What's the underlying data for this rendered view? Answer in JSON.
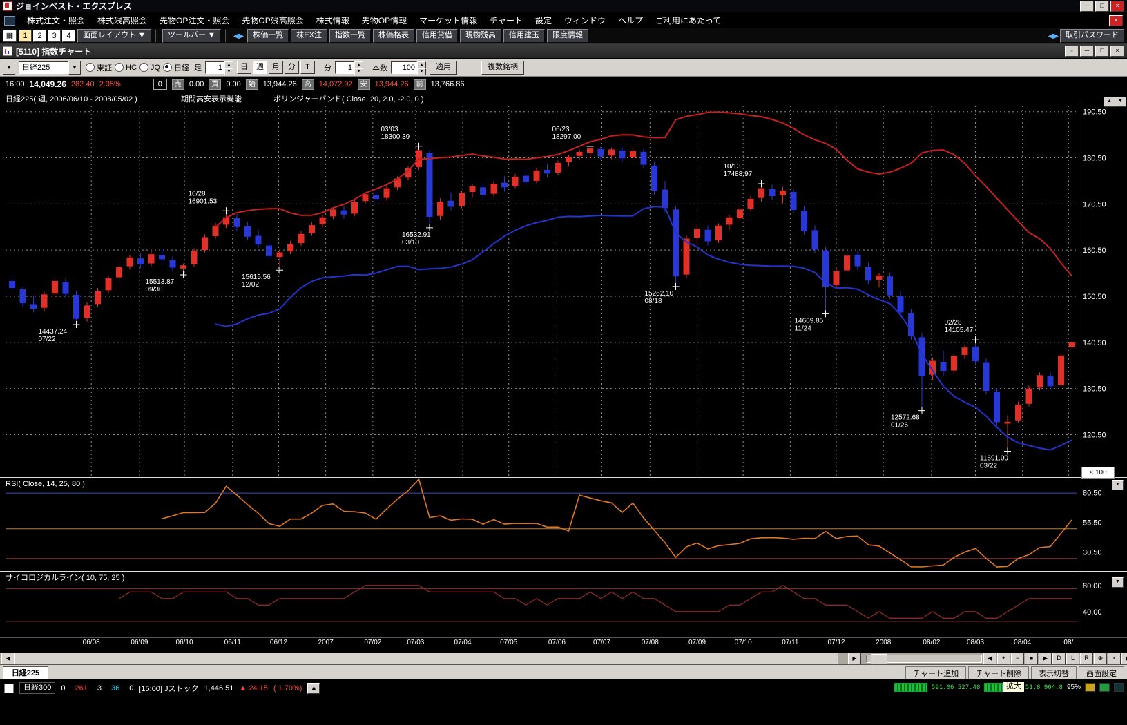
{
  "window": {
    "title": "ジョインベスト・エクスプレス"
  },
  "menu": {
    "items": [
      "株式注文・照会",
      "株式残高照会",
      "先物OP注文・照会",
      "先物OP残高照会",
      "株式情報",
      "先物OP情報",
      "マーケット情報",
      "チャート",
      "設定",
      "ウィンドウ",
      "ヘルプ",
      "ご利用にあたって"
    ]
  },
  "toolbar": {
    "layout_numbers": [
      "1",
      "2",
      "3",
      "4"
    ],
    "layout_dropdown": "画面レイアウト",
    "toolbar_dropdown": "ツールバー",
    "buttons": [
      "株価一覧",
      "株EX注",
      "指数一覧",
      "株価格表",
      "信用貸借",
      "現物残高",
      "信用建玉",
      "限度情報"
    ],
    "password_button": "取引パスワード"
  },
  "chart_window": {
    "title": "[5110] 指数チャート"
  },
  "controls": {
    "symbol": "日経225",
    "markets": [
      {
        "label": "東証",
        "selected": false
      },
      {
        "label": "HC",
        "selected": false
      },
      {
        "label": "JQ",
        "selected": false
      },
      {
        "label": "日経",
        "selected": true
      }
    ],
    "ashi_label": "足",
    "ashi_value": "1",
    "period_buttons": [
      {
        "label": "日",
        "active": false
      },
      {
        "label": "週",
        "active": true
      },
      {
        "label": "月",
        "active": false
      },
      {
        "label": "分",
        "active": false
      },
      {
        "label": "T",
        "active": false
      }
    ],
    "min_label": "分",
    "min_value": "1",
    "bars_label": "本数",
    "bars_value": "100",
    "apply_button": "適用",
    "multi_button": "複数銘柄"
  },
  "quote": {
    "time": "16:00",
    "price": "14,049.26",
    "change": "282.40",
    "change_pct": "2.05%",
    "volume": "0",
    "fields": [
      {
        "label": "売",
        "value": "0.00",
        "color": "#ffffff"
      },
      {
        "label": "買",
        "value": "0.00",
        "color": "#ffffff"
      },
      {
        "label": "始",
        "value": "13,944.26",
        "color": "#ffffff"
      },
      {
        "label": "高",
        "value": "14,072.92",
        "color": "#ff5040"
      },
      {
        "label": "安",
        "value": "13,944.26",
        "color": "#ff5040"
      },
      {
        "label": "前",
        "value": "13,766.86",
        "color": "#ffffff"
      }
    ]
  },
  "chart_data": {
    "type": "candlestick",
    "title": "日経225( 週, 2006/06/10 - 2008/05/02 )",
    "feature_labels": [
      "期間高安表示機能",
      "ボリンジャーバンド( Close, 20, 2.0, -2.0, 0 )"
    ],
    "multiplier": "× 100",
    "y_axis": {
      "domain": [
        11160,
        19180
      ],
      "gridlines": [
        19050,
        18050,
        17050,
        16050,
        15050,
        14050,
        13050,
        12050
      ],
      "labels": [
        "190.50",
        "180.50",
        "170.50",
        "160.50",
        "150.50",
        "140.50",
        "130.50",
        "120.50"
      ]
    },
    "x_ticks": [
      {
        "i": 7.4,
        "label": "06/08"
      },
      {
        "i": 11.9,
        "label": "06/09"
      },
      {
        "i": 16.1,
        "label": "06/10"
      },
      {
        "i": 20.6,
        "label": "06/11"
      },
      {
        "i": 24.9,
        "label": "06/12"
      },
      {
        "i": 29.3,
        "label": "2007"
      },
      {
        "i": 33.7,
        "label": "07/02"
      },
      {
        "i": 37.7,
        "label": "07/03"
      },
      {
        "i": 42.1,
        "label": "07/04"
      },
      {
        "i": 46.4,
        "label": "07/05"
      },
      {
        "i": 50.9,
        "label": "07/06"
      },
      {
        "i": 55.1,
        "label": "07/07"
      },
      {
        "i": 59.6,
        "label": "07/08"
      },
      {
        "i": 64.0,
        "label": "07/09"
      },
      {
        "i": 68.3,
        "label": "07/10"
      },
      {
        "i": 72.7,
        "label": "07/11"
      },
      {
        "i": 77.0,
        "label": "07/12"
      },
      {
        "i": 81.4,
        "label": "2008"
      },
      {
        "i": 85.9,
        "label": "08/02"
      },
      {
        "i": 90.0,
        "label": "08/03"
      },
      {
        "i": 94.4,
        "label": "08/04"
      },
      {
        "i": 98.7,
        "label": "08/"
      }
    ],
    "candles": [
      [
        15380,
        15520,
        15150,
        15230
      ],
      [
        15200,
        15260,
        14830,
        14900
      ],
      [
        14880,
        15070,
        14700,
        14780
      ],
      [
        14800,
        15150,
        14720,
        15090
      ],
      [
        15110,
        15440,
        15040,
        15380
      ],
      [
        15360,
        15450,
        15010,
        15100
      ],
      [
        15080,
        15170,
        14437.24,
        14560
      ],
      [
        14580,
        14920,
        14500,
        14850
      ],
      [
        14880,
        15230,
        14820,
        15160
      ],
      [
        15180,
        15500,
        15120,
        15440
      ],
      [
        15460,
        15740,
        15390,
        15680
      ],
      [
        15700,
        15950,
        15630,
        15890
      ],
      [
        15870,
        15980,
        15660,
        15740
      ],
      [
        15760,
        16020,
        15700,
        15960
      ],
      [
        15940,
        16060,
        15770,
        15850
      ],
      [
        15830,
        15920,
        15590,
        15670
      ],
      [
        15650,
        15760,
        15513.87,
        15720
      ],
      [
        15740,
        16090,
        15690,
        16030
      ],
      [
        16050,
        16390,
        16000,
        16330
      ],
      [
        16350,
        16640,
        16290,
        16580
      ],
      [
        16600,
        16901.53,
        16530,
        16760
      ],
      [
        16740,
        16830,
        16460,
        16550
      ],
      [
        16570,
        16660,
        16260,
        16340
      ],
      [
        16360,
        16490,
        16100,
        16170
      ],
      [
        16150,
        16260,
        15840,
        15920
      ],
      [
        15900,
        16060,
        15615.56,
        16000
      ],
      [
        16020,
        16250,
        15960,
        16180
      ],
      [
        16200,
        16460,
        16140,
        16400
      ],
      [
        16420,
        16650,
        16360,
        16590
      ],
      [
        16610,
        16810,
        16550,
        16760
      ],
      [
        16780,
        16980,
        16720,
        16930
      ],
      [
        16910,
        17010,
        16730,
        16820
      ],
      [
        16840,
        17140,
        16790,
        17090
      ],
      [
        17110,
        17310,
        17040,
        17260
      ],
      [
        17240,
        17380,
        17070,
        17160
      ],
      [
        17180,
        17440,
        17120,
        17390
      ],
      [
        17410,
        17650,
        17350,
        17600
      ],
      [
        17620,
        17870,
        17560,
        17820
      ],
      [
        17850,
        18300.39,
        17790,
        18215
      ],
      [
        18150,
        18220,
        16532.91,
        16770
      ],
      [
        16790,
        17170,
        16710,
        17100
      ],
      [
        17120,
        17300,
        16910,
        16990
      ],
      [
        17010,
        17340,
        16960,
        17290
      ],
      [
        17310,
        17490,
        17190,
        17430
      ],
      [
        17410,
        17500,
        17170,
        17250
      ],
      [
        17270,
        17540,
        17210,
        17490
      ],
      [
        17510,
        17650,
        17320,
        17410
      ],
      [
        17430,
        17700,
        17390,
        17640
      ],
      [
        17660,
        17770,
        17450,
        17530
      ],
      [
        17550,
        17820,
        17500,
        17770
      ],
      [
        17790,
        17920,
        17630,
        17710
      ],
      [
        17730,
        17990,
        17680,
        17940
      ],
      [
        17960,
        18120,
        17860,
        18070
      ],
      [
        18090,
        18230,
        18000,
        18180
      ],
      [
        18160,
        18297.0,
        18030,
        18260
      ],
      [
        18240,
        18290,
        18000,
        18080
      ],
      [
        18100,
        18270,
        18020,
        18230
      ],
      [
        18210,
        18280,
        17960,
        18040
      ],
      [
        18060,
        18260,
        17990,
        18200
      ],
      [
        18180,
        18240,
        17820,
        17900
      ],
      [
        17880,
        17960,
        17250,
        17340
      ],
      [
        17360,
        17550,
        16870,
        16960
      ],
      [
        16930,
        17000,
        15262.1,
        15480
      ],
      [
        15520,
        16370,
        15450,
        16300
      ],
      [
        16320,
        16590,
        16170,
        16510
      ],
      [
        16490,
        16580,
        16150,
        16240
      ],
      [
        16260,
        16630,
        16200,
        16580
      ],
      [
        16600,
        16820,
        16490,
        16760
      ],
      [
        16740,
        17000,
        16660,
        16930
      ],
      [
        16950,
        17230,
        16890,
        17160
      ],
      [
        17180,
        17488.97,
        17100,
        17390
      ],
      [
        17370,
        17470,
        17140,
        17220
      ],
      [
        17240,
        17420,
        17060,
        17340
      ],
      [
        17310,
        17370,
        16840,
        16920
      ],
      [
        16900,
        17010,
        16380,
        16460
      ],
      [
        16480,
        16590,
        15980,
        16060
      ],
      [
        16040,
        16120,
        14669.85,
        15260
      ],
      [
        15290,
        15650,
        15210,
        15590
      ],
      [
        15610,
        15990,
        15560,
        15930
      ],
      [
        15950,
        16030,
        15610,
        15700
      ],
      [
        15680,
        15780,
        15310,
        15390
      ],
      [
        15410,
        15560,
        15240,
        15500
      ],
      [
        15480,
        15560,
        14990,
        15070
      ],
      [
        15050,
        15160,
        14620,
        14700
      ],
      [
        14680,
        14780,
        14110,
        14190
      ],
      [
        14160,
        14260,
        12572.68,
        13320
      ],
      [
        13350,
        13720,
        13240,
        13650
      ],
      [
        13630,
        13870,
        13330,
        13420
      ],
      [
        13440,
        13820,
        13380,
        13760
      ],
      [
        13780,
        14000,
        13690,
        13940
      ],
      [
        13960,
        14105.47,
        13550,
        13640
      ],
      [
        13620,
        13700,
        12920,
        13000
      ],
      [
        12980,
        13060,
        12240,
        12320
      ],
      [
        12290,
        12470,
        11691.0,
        12330
      ],
      [
        12360,
        12770,
        12300,
        12700
      ],
      [
        12720,
        13110,
        12660,
        13050
      ],
      [
        13070,
        13400,
        13010,
        13340
      ],
      [
        13320,
        13410,
        13020,
        13100
      ],
      [
        13130,
        13810,
        13090,
        13766.86
      ],
      [
        13944.26,
        14072.92,
        13944.26,
        14049.26
      ]
    ],
    "bollinger": {
      "period": 20,
      "k": 2.0
    },
    "rsi": {
      "title": "RSI( Close, 14, 25, 80 )",
      "period": 14,
      "ref_levels": [
        80,
        50,
        25
      ],
      "ref_colors": [
        "#3a4ad0",
        "#d07820",
        "#a03030"
      ],
      "labels": [
        {
          "v": 80.5,
          "text": "80.50"
        },
        {
          "v": 55.5,
          "text": "55.50"
        },
        {
          "v": 30.5,
          "text": "30.50"
        }
      ]
    },
    "psych": {
      "title": "サイコロジカルライン( 10, 75, 25 )",
      "period": 10,
      "ref_levels": [
        75,
        25
      ],
      "labels": [
        {
          "v": 80,
          "text": "80.00"
        },
        {
          "v": 40,
          "text": "40.00"
        }
      ]
    },
    "annotations": [
      {
        "i": 6,
        "price": 14437.24,
        "lines": [
          "14437.24",
          "07/22"
        ],
        "side": "below",
        "dx": -55
      },
      {
        "i": 16,
        "price": 15513.87,
        "lines": [
          "15513.87",
          "09/30"
        ],
        "side": "below",
        "dx": -55
      },
      {
        "i": 20,
        "price": 16901.53,
        "lines": [
          "10/28",
          "16901.53"
        ],
        "side": "above",
        "dx": -55
      },
      {
        "i": 25,
        "price": 15615.56,
        "lines": [
          "15615.56",
          "12/02"
        ],
        "side": "below",
        "dx": -55
      },
      {
        "i": 38,
        "price": 18300.39,
        "lines": [
          "03/03",
          "18300.39"
        ],
        "side": "above",
        "dx": -55
      },
      {
        "i": 39,
        "price": 16532.91,
        "lines": [
          "16532.91",
          "03/10"
        ],
        "side": "below",
        "dx": -40
      },
      {
        "i": 54,
        "price": 18297.0,
        "lines": [
          "06/23",
          "18297.00"
        ],
        "side": "above",
        "dx": -55
      },
      {
        "i": 62,
        "price": 15262.1,
        "lines": [
          "15262.10",
          "08/18"
        ],
        "side": "below",
        "dx": -45
      },
      {
        "i": 70,
        "price": 17488.97,
        "lines": [
          "10/13",
          "17488.97"
        ],
        "side": "above",
        "dx": -55
      },
      {
        "i": 76,
        "price": 14669.85,
        "lines": [
          "14669.85",
          "11/24"
        ],
        "side": "below",
        "dx": -45
      },
      {
        "i": 85,
        "price": 12572.68,
        "lines": [
          "12572.68",
          "01/26"
        ],
        "side": "below",
        "dx": -45
      },
      {
        "i": 90,
        "price": 14105.47,
        "lines": [
          "02/28",
          "14105.47"
        ],
        "side": "above",
        "dx": -45
      },
      {
        "i": 93,
        "price": 11691.0,
        "lines": [
          "11691.00",
          "03/22"
        ],
        "side": "below",
        "dx": -40
      }
    ],
    "colors": {
      "up": "#e03028",
      "down": "#2838d8",
      "boll_upper": "#c82020",
      "boll_lower": "#2334cc",
      "rsi_line": "#e07820",
      "psych_line": "#902828",
      "grid": "#8a8a8a",
      "text": "#ffffff",
      "bg": "#000000"
    }
  },
  "bottom": {
    "tab": "日経225",
    "buttons": [
      "チャート追加",
      "チャート削除",
      "表示切替",
      "画面設定"
    ],
    "tooltip": "拡大",
    "scroll_buttons": [
      "◀",
      "+",
      "−",
      "■",
      "▶",
      "D",
      "L",
      "R",
      "⊕",
      "×",
      "▶"
    ]
  },
  "status": {
    "name": "日経300",
    "values": [
      {
        "text": "0",
        "color": "#ffffff"
      },
      {
        "text": "261",
        "color": "#ff4040"
      },
      {
        "text": "3",
        "color": "#ffffff"
      },
      {
        "text": "36",
        "color": "#30c8f0"
      },
      {
        "text": "0",
        "color": "#ffffff"
      }
    ],
    "session": "[15:00] Jストック",
    "index_value": "1,446.51",
    "change": "▲ 24.15",
    "change_pct": "( 1.70%)",
    "meter1": "591.06 527.48",
    "meter2": "851.8 904.8",
    "percent": "95%"
  }
}
